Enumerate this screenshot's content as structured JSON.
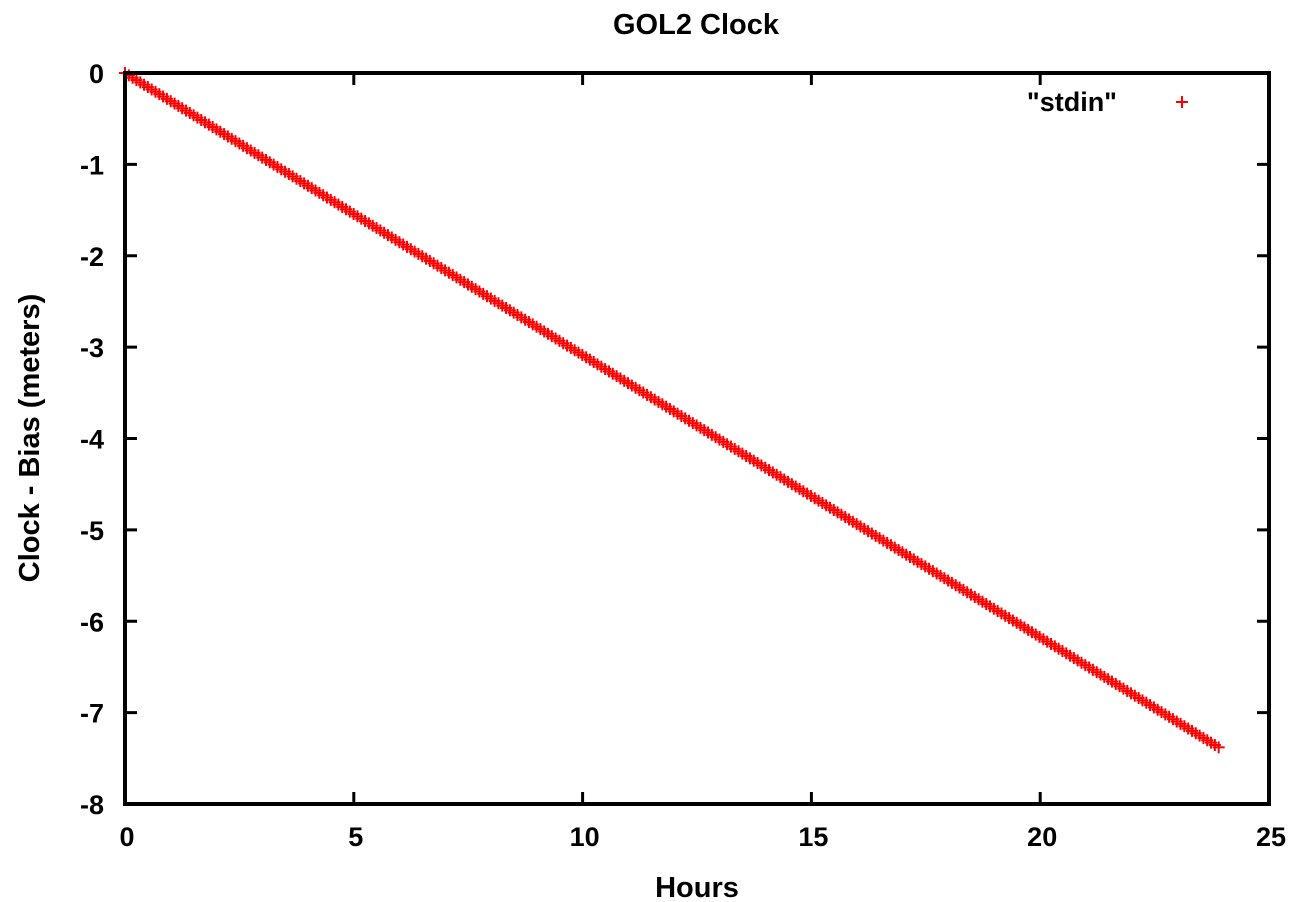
{
  "chart_data": {
    "type": "scatter",
    "title": "GOL2 Clock",
    "xlabel": "Hours",
    "ylabel": "Clock  - Bias (meters)",
    "xlim": [
      0,
      25
    ],
    "ylim": [
      -8,
      0
    ],
    "xticks": [
      0,
      5,
      10,
      15,
      20,
      25
    ],
    "yticks": [
      0,
      -1,
      -2,
      -3,
      -4,
      -5,
      -6,
      -7,
      -8
    ],
    "xtick_labels": [
      "0",
      "5",
      "10",
      "15",
      "20",
      "25"
    ],
    "ytick_labels": [
      "0",
      "-1",
      "-2",
      "-3",
      "-4",
      "-5",
      "-6",
      "-7",
      "-8"
    ],
    "grid": false,
    "legend_position": "top-right",
    "marker": "plus",
    "series": [
      {
        "name": "\"stdin\"",
        "color": "#ff0000",
        "x_range": [
          0,
          23.9
        ],
        "y_range": [
          0,
          -7.38
        ],
        "sample_interval_hours": 0.0833
      }
    ]
  }
}
